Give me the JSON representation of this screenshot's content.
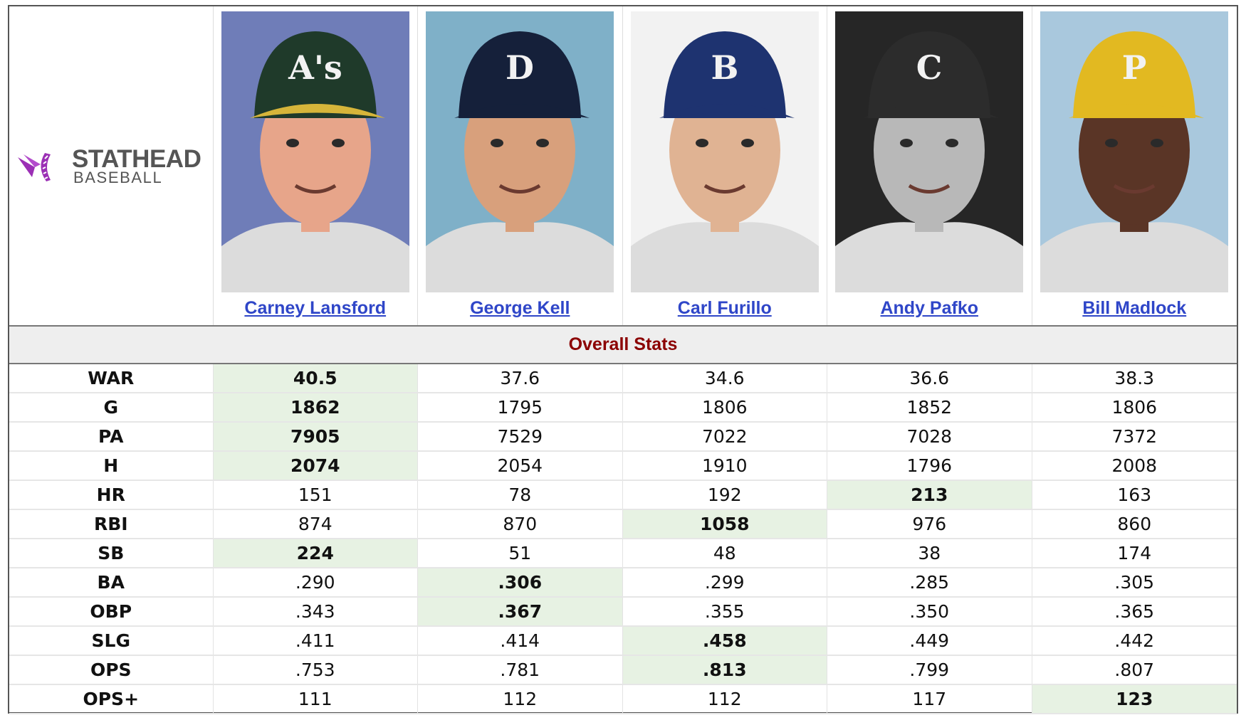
{
  "logo": {
    "brand": "STATHEAD",
    "sub": "BASEBALL"
  },
  "players": [
    {
      "name": "Carney Lansford",
      "cap_letter": "A's",
      "cap_color": "#1f3a2a",
      "brim_color": "#d6b53a",
      "skin": "#e7a58a",
      "bg": "#6f7db8"
    },
    {
      "name": "George Kell",
      "cap_letter": "D",
      "cap_color": "#15203a",
      "brim_color": "#15203a",
      "skin": "#d8a07c",
      "bg": "#7fb0c8"
    },
    {
      "name": "Carl Furillo",
      "cap_letter": "B",
      "cap_color": "#1e3370",
      "brim_color": "#1e3370",
      "skin": "#e0b393",
      "bg": "#f2f2f2"
    },
    {
      "name": "Andy Pafko",
      "cap_letter": "C",
      "cap_color": "#2c2c2c",
      "brim_color": "#2c2c2c",
      "skin": "#b8b8b8",
      "bg": "#262626"
    },
    {
      "name": "Bill Madlock",
      "cap_letter": "P",
      "cap_color": "#e2b921",
      "brim_color": "#e2b921",
      "skin": "#5a3526",
      "bg": "#a9c8dd"
    }
  ],
  "section_title": "Overall Stats",
  "stats": [
    {
      "label": "WAR",
      "values": [
        "40.5",
        "37.6",
        "34.6",
        "36.6",
        "38.3"
      ],
      "best": 0
    },
    {
      "label": "G",
      "values": [
        "1862",
        "1795",
        "1806",
        "1852",
        "1806"
      ],
      "best": 0
    },
    {
      "label": "PA",
      "values": [
        "7905",
        "7529",
        "7022",
        "7028",
        "7372"
      ],
      "best": 0
    },
    {
      "label": "H",
      "values": [
        "2074",
        "2054",
        "1910",
        "1796",
        "2008"
      ],
      "best": 0
    },
    {
      "label": "HR",
      "values": [
        "151",
        "78",
        "192",
        "213",
        "163"
      ],
      "best": 3
    },
    {
      "label": "RBI",
      "values": [
        "874",
        "870",
        "1058",
        "976",
        "860"
      ],
      "best": 2
    },
    {
      "label": "SB",
      "values": [
        "224",
        "51",
        "48",
        "38",
        "174"
      ],
      "best": 0
    },
    {
      "label": "BA",
      "values": [
        ".290",
        ".306",
        ".299",
        ".285",
        ".305"
      ],
      "best": 1
    },
    {
      "label": "OBP",
      "values": [
        ".343",
        ".367",
        ".355",
        ".350",
        ".365"
      ],
      "best": 1
    },
    {
      "label": "SLG",
      "values": [
        ".411",
        ".414",
        ".458",
        ".449",
        ".442"
      ],
      "best": 2
    },
    {
      "label": "OPS",
      "values": [
        ".753",
        ".781",
        ".813",
        ".799",
        ".807"
      ],
      "best": 2
    },
    {
      "label": "OPS+",
      "values": [
        "111",
        "112",
        "112",
        "117",
        "123"
      ],
      "best": 4
    }
  ],
  "colors": {
    "best_highlight": "#e7f2e3",
    "link": "#2f46c8",
    "section_title": "#8b0000",
    "logo_purple": "#9b2fb5"
  }
}
